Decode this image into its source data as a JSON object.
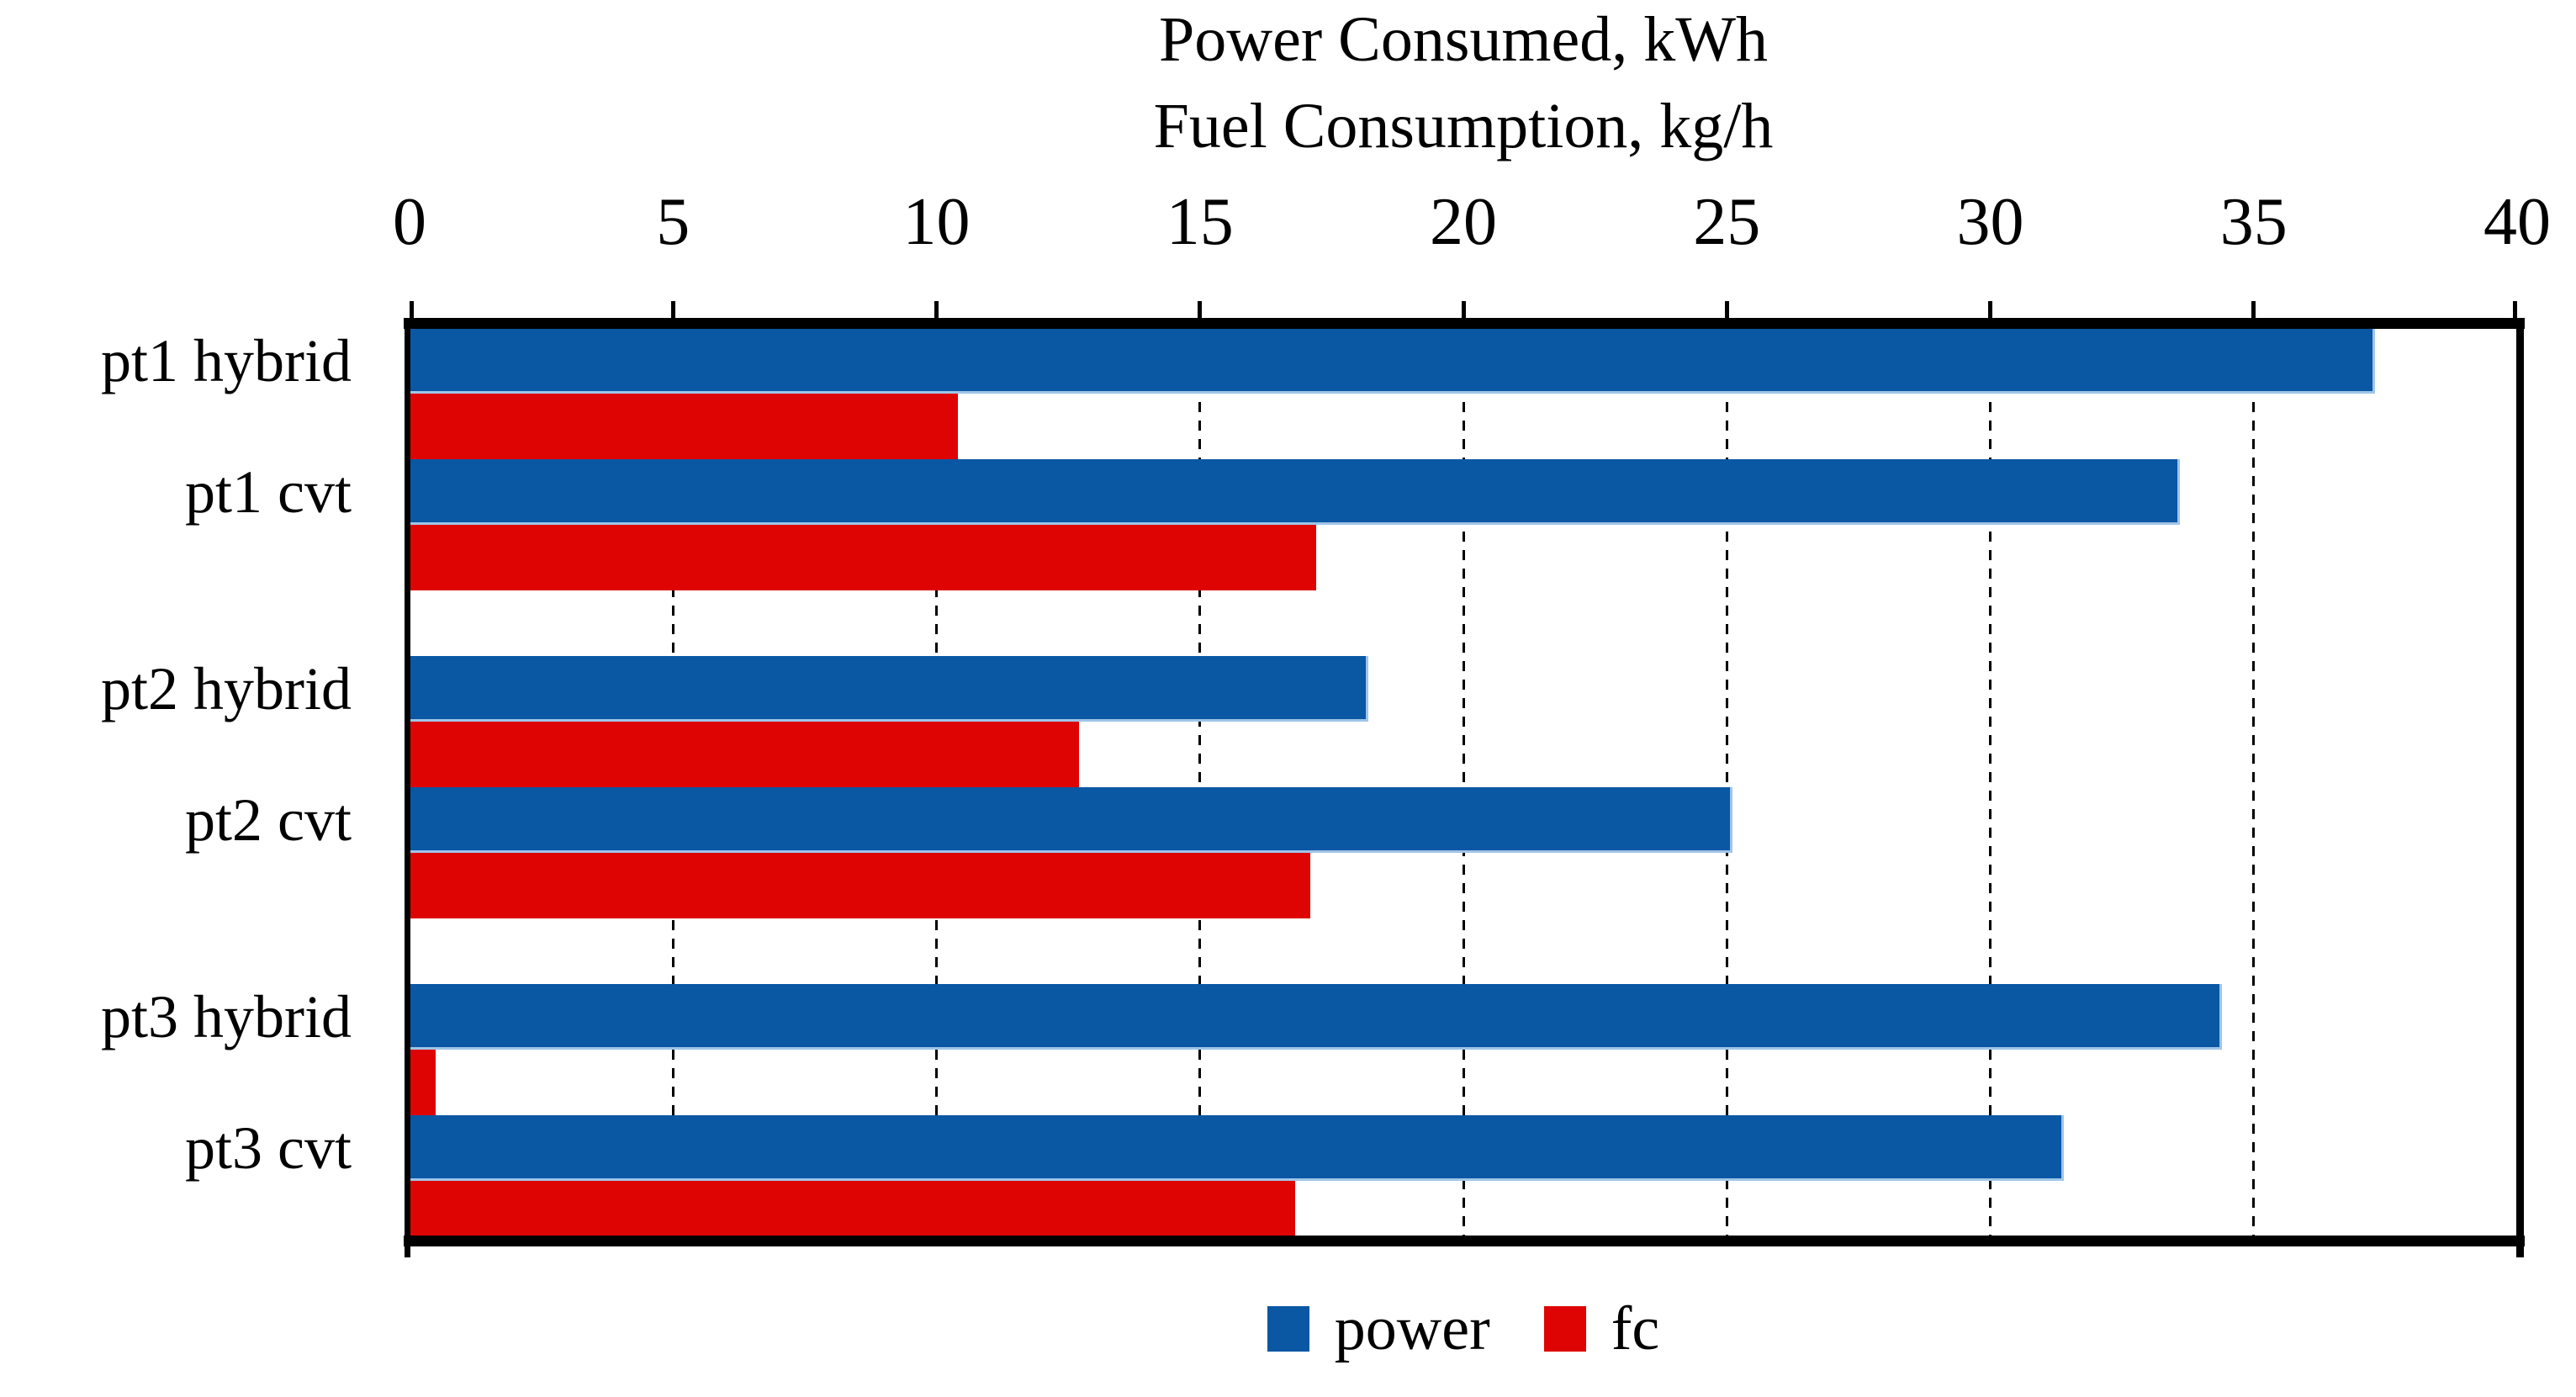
{
  "chart_data": {
    "type": "bar",
    "orientation": "horizontal",
    "title_lines": [
      "Power Consumed, kWh",
      "Fuel Consumption, kg/h"
    ],
    "categories": [
      "pt1 hybrid",
      "pt1 cvt",
      "pt2 hybrid",
      "pt2 cvt",
      "pt3 hybrid",
      "pt3 cvt"
    ],
    "category_groups": [
      [
        "pt1 hybrid",
        "pt1 cvt"
      ],
      [
        "pt2 hybrid",
        "pt2 cvt"
      ],
      [
        "pt3 hybrid",
        "pt3 cvt"
      ]
    ],
    "series": [
      {
        "name": "power",
        "color": "#0A57A4",
        "values": [
          37.3,
          33.6,
          18.2,
          25.1,
          34.4,
          31.4
        ]
      },
      {
        "name": "fc",
        "color": "#DF0404",
        "values": [
          10.4,
          17.2,
          12.7,
          17.1,
          0.5,
          16.8
        ]
      }
    ],
    "x_axis": {
      "min": 0,
      "max": 40,
      "tick_step": 5,
      "tick_labels": [
        "0",
        "5",
        "10",
        "15",
        "20",
        "25",
        "30",
        "35",
        "40"
      ]
    },
    "grid": {
      "style": "dashed",
      "lines": "vertical",
      "color": "#000000",
      "at": [
        5,
        10,
        15,
        20,
        25,
        30,
        35
      ]
    },
    "legend": {
      "position": "bottom",
      "entries": [
        {
          "label": "power",
          "color": "#0A57A4"
        },
        {
          "label": "fc",
          "color": "#DF0404"
        }
      ]
    }
  }
}
